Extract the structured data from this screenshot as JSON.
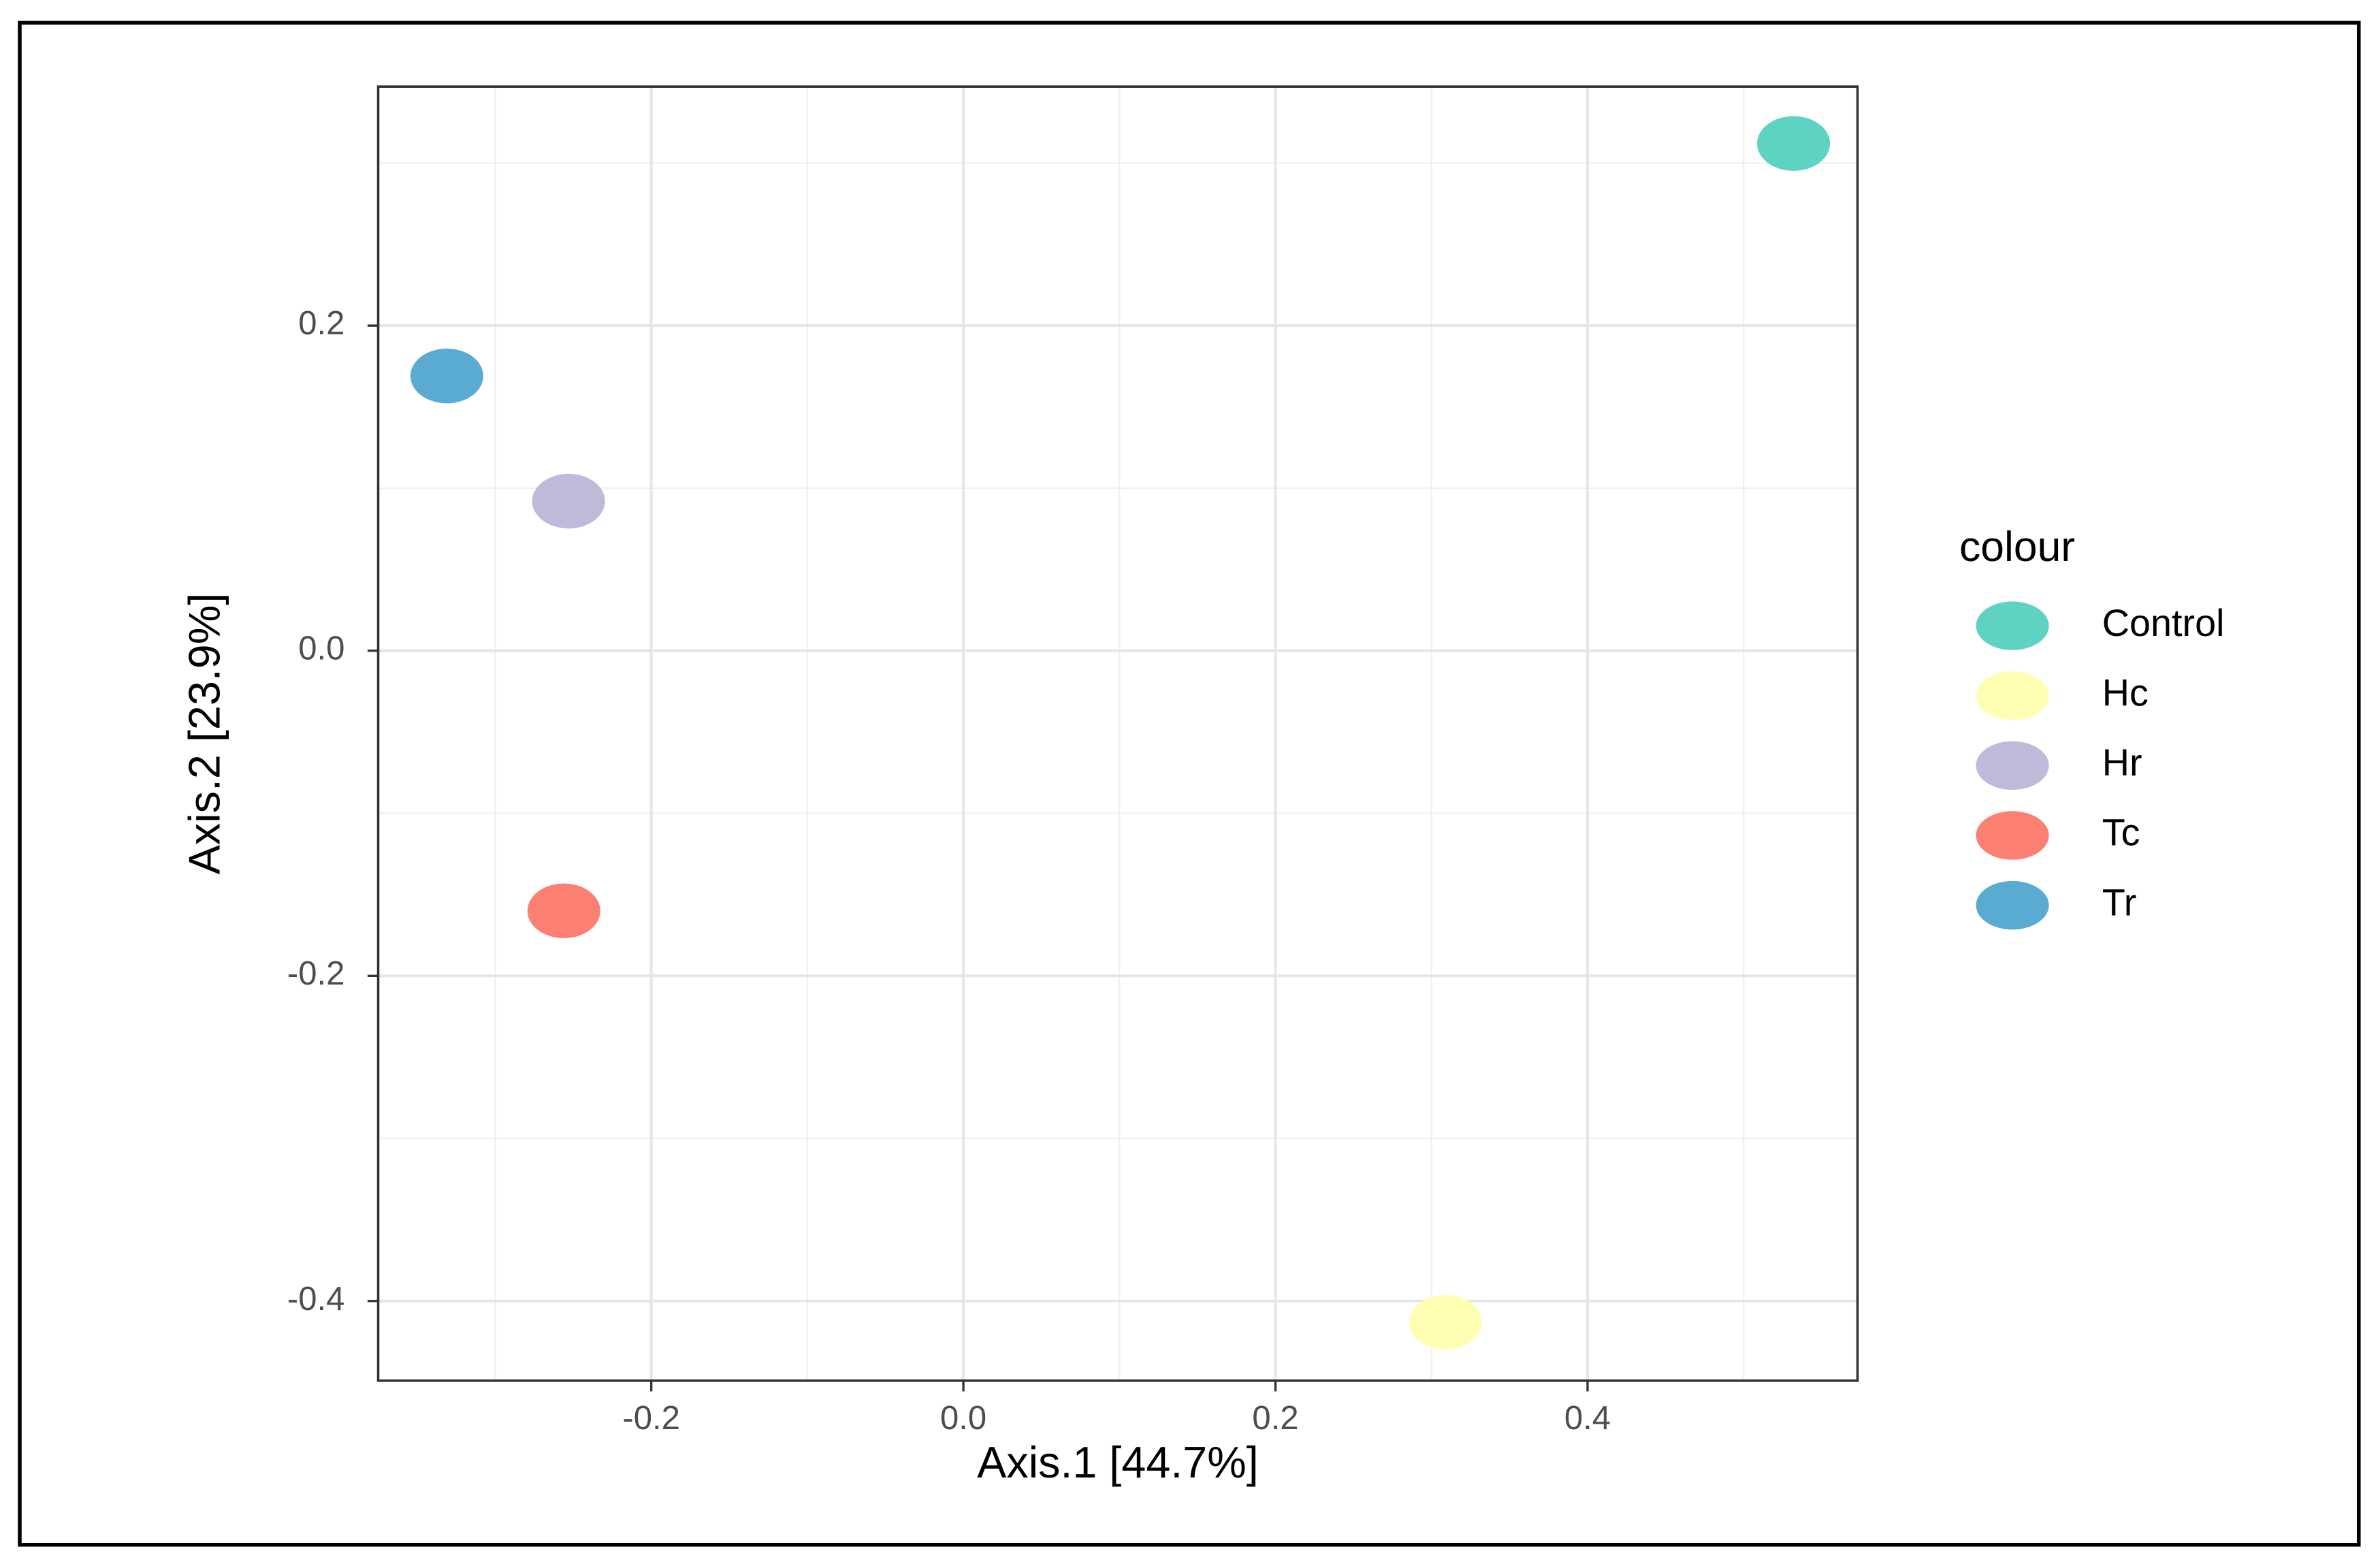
{
  "chart_data": {
    "type": "scatter",
    "xlabel": "Axis.1   [44.7%]",
    "ylabel": "Axis.2  [23.9%]",
    "legend_title": "colour",
    "legend": "right",
    "grid": true,
    "xlim": [
      -0.375,
      0.573
    ],
    "ylim": [
      -0.449,
      0.347
    ],
    "xticks": [
      -0.2,
      {
        "value": 0,
        "label": "0.0"
      },
      0.2,
      0.4
    ],
    "yticks": [
      0.2,
      {
        "value": 0,
        "label": "0.0"
      },
      -0.2,
      -0.4
    ],
    "x_minor_ticks": [
      -0.3,
      -0.1,
      0.1,
      0.3,
      0.5
    ],
    "y_minor_ticks": [
      0.3,
      0.1,
      -0.1,
      -0.3
    ],
    "series": [
      {
        "name": "Control",
        "color": "#5fd3c2",
        "x": [
          0.532
        ],
        "values": [
          0.312
        ]
      },
      {
        "name": "Hc",
        "color": "#ffffb3",
        "x": [
          0.309
        ],
        "values": [
          -0.413
        ]
      },
      {
        "name": "Hr",
        "color": "#bebada",
        "x": [
          -0.253
        ],
        "values": [
          0.092
        ]
      },
      {
        "name": "Tc",
        "color": "#fb8072",
        "x": [
          -0.256
        ],
        "values": [
          -0.16
        ]
      },
      {
        "name": "Tr",
        "color": "#5aabd1",
        "x": [
          -0.331
        ],
        "values": [
          0.169
        ]
      }
    ]
  }
}
